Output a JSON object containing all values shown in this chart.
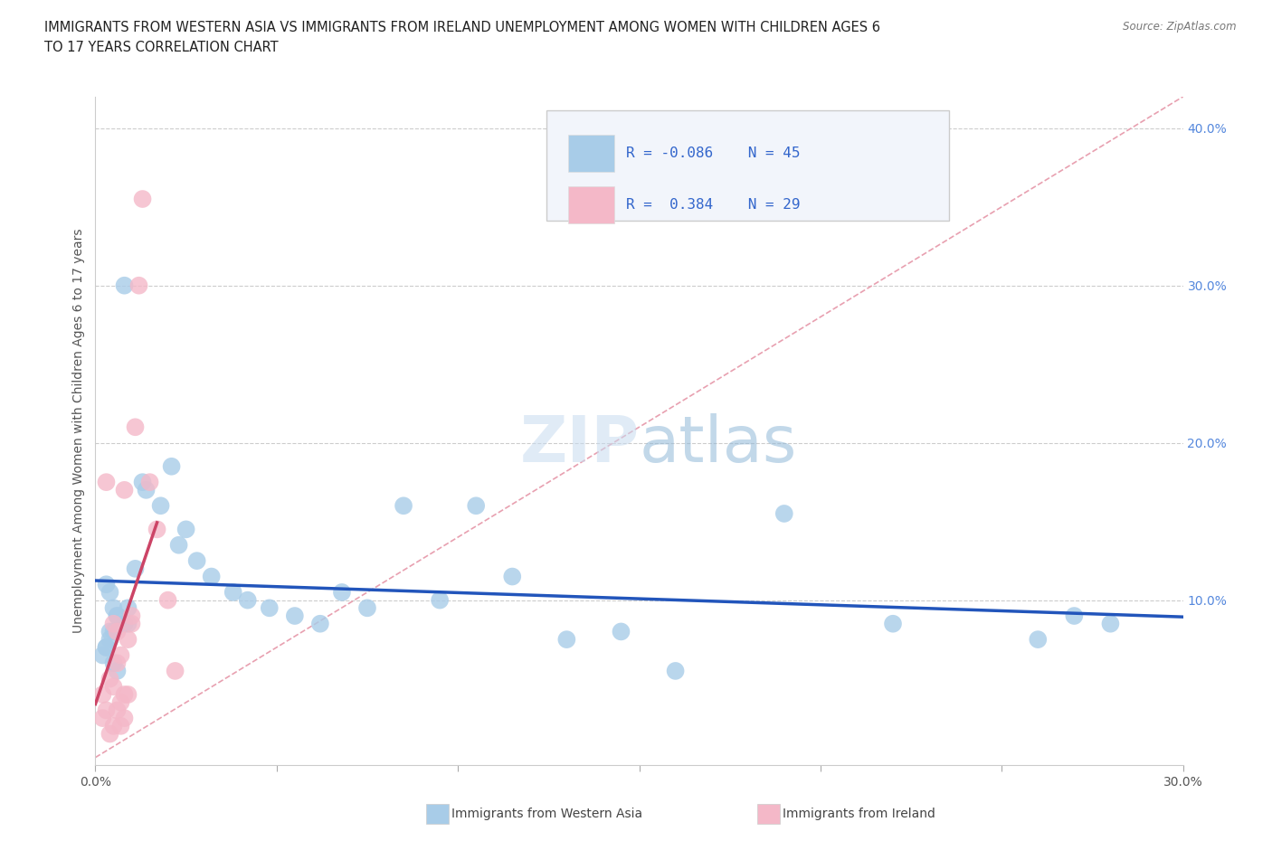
{
  "title": "IMMIGRANTS FROM WESTERN ASIA VS IMMIGRANTS FROM IRELAND UNEMPLOYMENT AMONG WOMEN WITH CHILDREN AGES 6\nTO 17 YEARS CORRELATION CHART",
  "source_text": "Source: ZipAtlas.com",
  "ylabel": "Unemployment Among Women with Children Ages 6 to 17 years",
  "xlim": [
    0.0,
    0.3
  ],
  "ylim": [
    -0.005,
    0.42
  ],
  "watermark": "ZIPatlas",
  "blue_color": "#a8cce8",
  "pink_color": "#f4b8c8",
  "trend_blue_color": "#2255bb",
  "trend_pink_color": "#cc4466",
  "ref_line_color": "#e8a0b0",
  "background_color": "#ffffff",
  "western_asia_x": [
    0.005,
    0.004,
    0.003,
    0.006,
    0.005,
    0.003,
    0.002,
    0.004,
    0.005,
    0.006,
    0.008,
    0.008,
    0.009,
    0.004,
    0.003,
    0.009,
    0.006,
    0.011,
    0.013,
    0.014,
    0.018,
    0.021,
    0.023,
    0.025,
    0.028,
    0.032,
    0.038,
    0.042,
    0.048,
    0.055,
    0.062,
    0.068,
    0.075,
    0.085,
    0.095,
    0.105,
    0.115,
    0.13,
    0.145,
    0.16,
    0.19,
    0.22,
    0.26,
    0.27,
    0.28
  ],
  "western_asia_y": [
    0.095,
    0.105,
    0.11,
    0.09,
    0.08,
    0.07,
    0.065,
    0.075,
    0.06,
    0.055,
    0.085,
    0.3,
    0.085,
    0.08,
    0.07,
    0.095,
    0.09,
    0.12,
    0.175,
    0.17,
    0.16,
    0.185,
    0.135,
    0.145,
    0.125,
    0.115,
    0.105,
    0.1,
    0.095,
    0.09,
    0.085,
    0.105,
    0.095,
    0.16,
    0.1,
    0.16,
    0.115,
    0.075,
    0.08,
    0.055,
    0.155,
    0.085,
    0.075,
    0.09,
    0.085
  ],
  "ireland_x": [
    0.002,
    0.002,
    0.003,
    0.003,
    0.004,
    0.004,
    0.005,
    0.005,
    0.005,
    0.006,
    0.006,
    0.006,
    0.007,
    0.007,
    0.007,
    0.008,
    0.008,
    0.008,
    0.009,
    0.009,
    0.01,
    0.01,
    0.011,
    0.012,
    0.013,
    0.015,
    0.017,
    0.02,
    0.022
  ],
  "ireland_y": [
    0.025,
    0.04,
    0.175,
    0.03,
    0.015,
    0.05,
    0.02,
    0.045,
    0.085,
    0.03,
    0.06,
    0.08,
    0.02,
    0.035,
    0.065,
    0.025,
    0.04,
    0.17,
    0.075,
    0.04,
    0.085,
    0.09,
    0.21,
    0.3,
    0.355,
    0.175,
    0.145,
    0.1,
    0.055
  ]
}
